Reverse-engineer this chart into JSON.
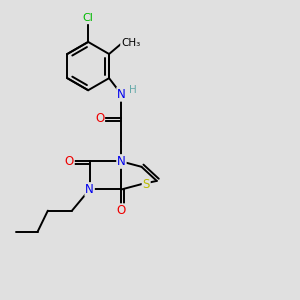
{
  "bg_color": "#e0e0e0",
  "atom_colors": {
    "C": "#000000",
    "N": "#0000ee",
    "O": "#ee0000",
    "S": "#bbbb00",
    "Cl": "#00bb00",
    "H": "#66aaaa"
  },
  "bond_color": "#000000",
  "bond_width": 1.4,
  "figsize": [
    3.0,
    3.0
  ],
  "dpi": 100
}
